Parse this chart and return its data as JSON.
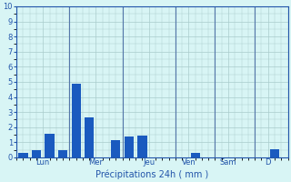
{
  "title": "",
  "xlabel": "Précipitations 24h ( mm )",
  "ylabel": "",
  "background_color": "#d8f5f5",
  "grid_color": "#aacccc",
  "bar_color": "#1a5abf",
  "ylim": [
    0,
    10
  ],
  "yticks": [
    0,
    1,
    2,
    3,
    4,
    5,
    6,
    7,
    8,
    9,
    10
  ],
  "day_labels": [
    "Lun",
    "Mer",
    "Jeu",
    "Ven",
    "Sam",
    "D"
  ],
  "day_tick_positions": [
    3.5,
    7.5,
    11.5,
    14.5,
    17.5,
    20.5
  ],
  "day_separator_positions": [
    1.5,
    5.5,
    9.5,
    13.5,
    16.5,
    19.5
  ],
  "bar_positions": [
    2,
    3,
    4,
    5,
    6,
    7,
    8,
    9,
    10,
    11,
    12,
    13,
    14,
    15,
    16,
    17,
    18,
    19,
    20,
    21
  ],
  "bar_values": [
    0.3,
    0.45,
    1.55,
    0.45,
    4.9,
    2.65,
    0,
    1.15,
    1.35,
    1.45,
    0,
    0,
    0,
    0.3,
    0,
    0,
    0,
    0,
    0,
    0.55
  ],
  "xlim": [
    1.5,
    22
  ],
  "figsize": [
    3.2,
    2.0
  ],
  "dpi": 100
}
